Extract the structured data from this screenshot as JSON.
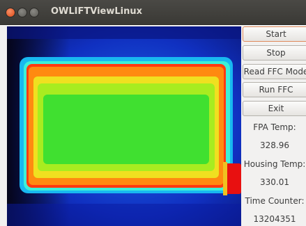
{
  "window": {
    "title": "OWLIFTViewLinux"
  },
  "buttons": [
    "Start",
    "Stop",
    "Read FFC Mode",
    "Run FFC",
    "Exit"
  ],
  "readouts": [
    {
      "label": "FPA Temp:",
      "value": "328.96"
    },
    {
      "label": "Housing Temp:",
      "value": "330.01"
    },
    {
      "label": "Time Counter:",
      "value": "13204351"
    }
  ]
}
